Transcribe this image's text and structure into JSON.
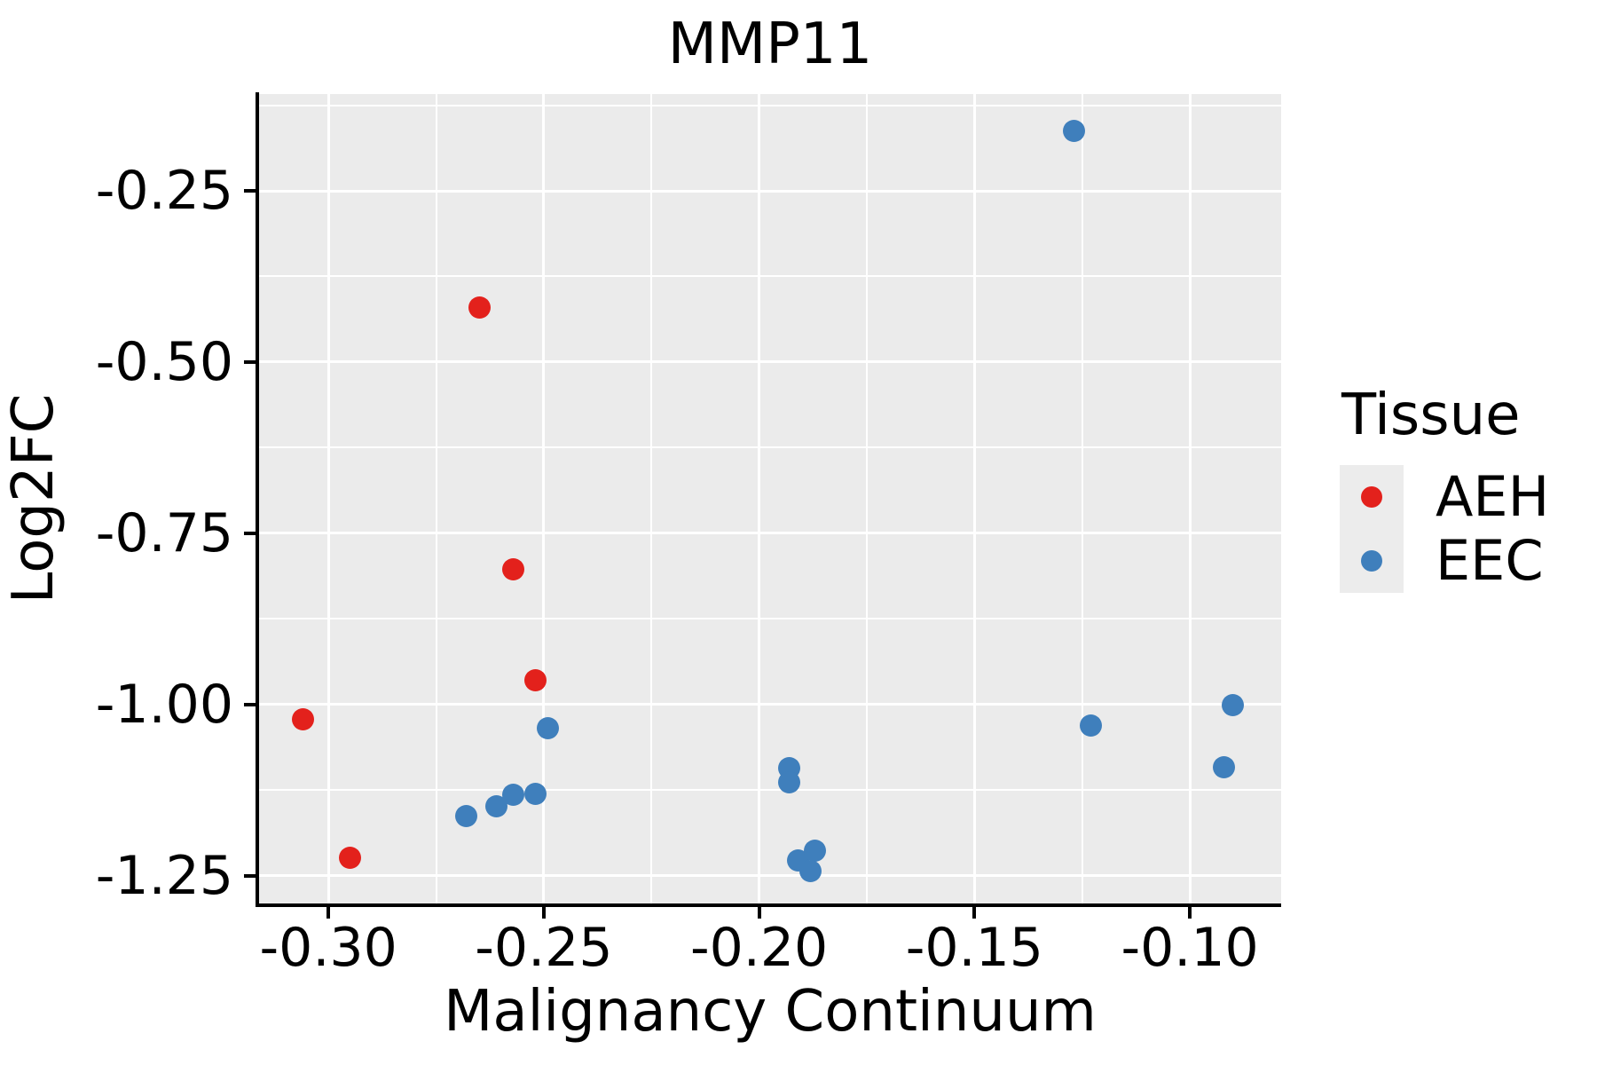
{
  "title": "MMP11",
  "axes": {
    "x": {
      "label": "Malignancy Continuum",
      "tick_labels": [
        "-0.30",
        "-0.25",
        "-0.20",
        "-0.15",
        "-0.10"
      ],
      "tick_values": [
        -0.3,
        -0.25,
        -0.2,
        -0.15,
        -0.1
      ],
      "minor_tick_values": [
        -0.275,
        -0.225,
        -0.175,
        -0.125
      ],
      "domain": [
        -0.3161,
        -0.0788
      ]
    },
    "y": {
      "label": "Log2FC",
      "tick_labels": [
        "-0.25",
        "-0.50",
        "-0.75",
        "-1.00",
        "-1.25"
      ],
      "tick_values": [
        -0.25,
        -0.5,
        -0.75,
        -1.0,
        -1.25
      ],
      "minor_tick_values": [
        -0.125,
        -0.375,
        -0.625,
        -0.875,
        -1.125
      ],
      "domain": [
        -1.2902,
        -0.1088
      ]
    }
  },
  "legend": {
    "title": "Tissue",
    "items": [
      {
        "label": "AEH",
        "color": "#e3211c"
      },
      {
        "label": "EEC",
        "color": "#3f7fbc"
      }
    ]
  },
  "colors": {
    "panel_background": "#ebebeb",
    "grid": "#ffffff",
    "spine": "#000000",
    "text": "#000000",
    "legend_key_background": "#ececec",
    "aeh": "#e3211c",
    "eec": "#3f7fbc"
  },
  "chart_data": {
    "type": "scatter",
    "title": "MMP11",
    "xlabel": "Malignancy Continuum",
    "ylabel": "Log2FC",
    "xlim": [
      -0.3161,
      -0.0788
    ],
    "ylim": [
      -1.2902,
      -0.1088
    ],
    "grid": "major-and-minor-white-on-gray",
    "legend_position": "right",
    "series": [
      {
        "name": "AEH",
        "color": "#e3211c",
        "points": [
          [
            -0.265,
            -0.42
          ],
          [
            -0.257,
            -0.803
          ],
          [
            -0.252,
            -0.965
          ],
          [
            -0.306,
            -1.022
          ],
          [
            -0.295,
            -1.224
          ]
        ]
      },
      {
        "name": "EEC",
        "color": "#3f7fbc",
        "points": [
          [
            -0.127,
            -0.162
          ],
          [
            -0.249,
            -1.035
          ],
          [
            -0.268,
            -1.163
          ],
          [
            -0.261,
            -1.149
          ],
          [
            -0.257,
            -1.132
          ],
          [
            -0.252,
            -1.13
          ],
          [
            -0.193,
            -1.093
          ],
          [
            -0.193,
            -1.114
          ],
          [
            -0.191,
            -1.228
          ],
          [
            -0.187,
            -1.213
          ],
          [
            -0.188,
            -1.243
          ],
          [
            -0.123,
            -1.03
          ],
          [
            -0.09,
            -1.001
          ],
          [
            -0.092,
            -1.092
          ]
        ]
      }
    ]
  }
}
